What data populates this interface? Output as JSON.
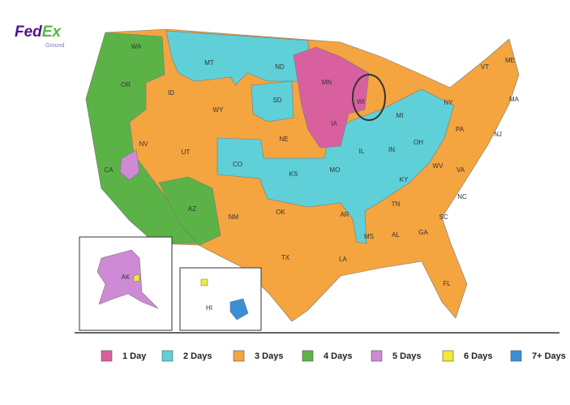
{
  "logo": {
    "fed": "Fed",
    "ex": "Ex",
    "sub": "Ground"
  },
  "states": [
    "WA",
    "OR",
    "CA",
    "NV",
    "ID",
    "MT",
    "WY",
    "UT",
    "AZ",
    "NM",
    "CO",
    "ND",
    "SD",
    "NE",
    "KS",
    "OK",
    "TX",
    "MN",
    "IA",
    "MO",
    "AR",
    "LA",
    "WI",
    "IL",
    "MI",
    "IN",
    "OH",
    "KY",
    "TN",
    "MS",
    "AL",
    "GA",
    "FL",
    "SC",
    "NC",
    "VA",
    "WV",
    "PA",
    "NY",
    "VT",
    "ME",
    "MA",
    "NJ",
    "AK",
    "HI"
  ],
  "legend": [
    {
      "label": "1 Day",
      "color": "#d9609f"
    },
    {
      "label": "2 Days",
      "color": "#5fd0d8"
    },
    {
      "label": "3 Days",
      "color": "#f4a540"
    },
    {
      "label": "4 Days",
      "color": "#5bb347"
    },
    {
      "label": "5 Days",
      "color": "#cf8ad6"
    },
    {
      "label": "6 Days",
      "color": "#f3e838"
    },
    {
      "label": "7+ Days",
      "color": "#3a8fd6"
    }
  ]
}
